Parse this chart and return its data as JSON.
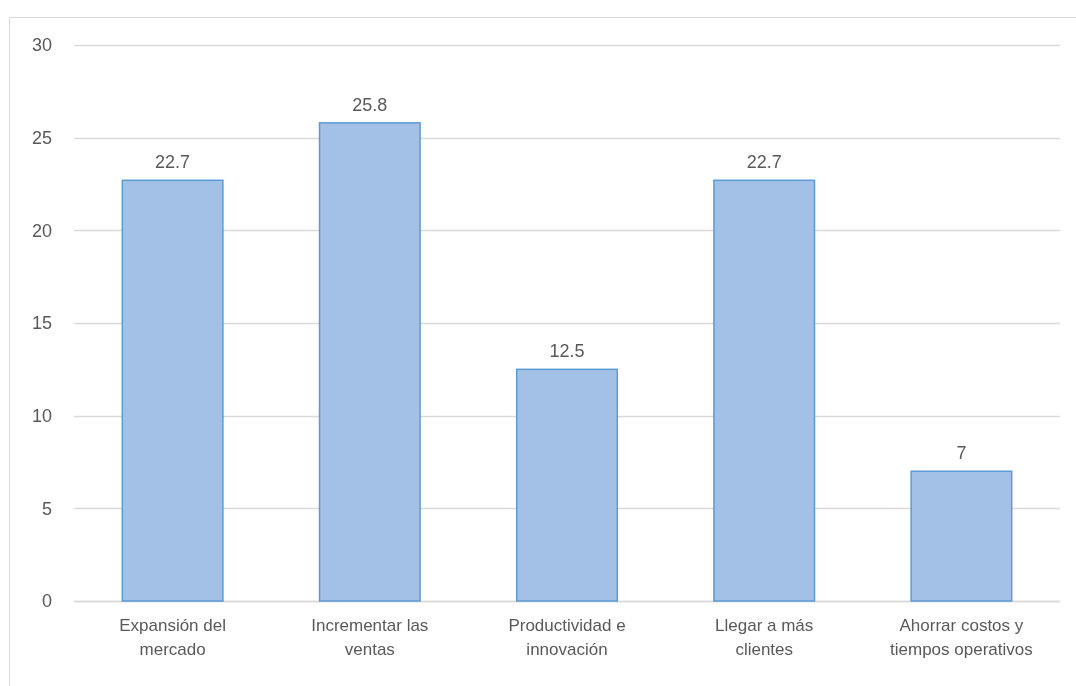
{
  "chart_data": {
    "type": "bar",
    "categories": [
      "Expansión del mercado",
      "Incrementar las ventas",
      "Productividad e innovación",
      "Llegar a más clientes",
      "Ahorrar costos y tiempos operativos"
    ],
    "values": [
      22.7,
      25.8,
      12.5,
      22.7,
      7
    ],
    "color": "#a3c1e6",
    "ylim": [
      0,
      30
    ],
    "yticks": [
      0,
      5,
      10,
      15,
      20,
      25,
      30
    ],
    "grid": "y",
    "data_labels": true
  }
}
